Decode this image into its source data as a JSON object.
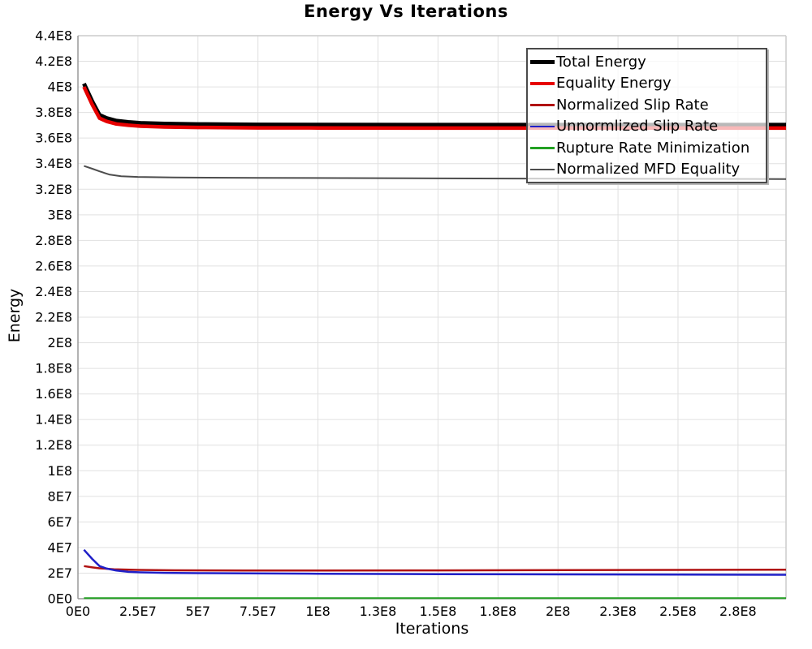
{
  "title": "Energy Vs Iterations",
  "chart_data": {
    "type": "line",
    "title": "Energy Vs Iterations",
    "xlabel": "Iterations",
    "ylabel": "Energy",
    "xlim": [
      0,
      295000000.0
    ],
    "ylim": [
      0,
      440000000.0
    ],
    "grid": true,
    "legend_position": "top-right",
    "x_ticks": [
      {
        "v": 0,
        "label": "0E0"
      },
      {
        "v": 25000000.0,
        "label": "2.5E7"
      },
      {
        "v": 50000000.0,
        "label": "5E7"
      },
      {
        "v": 75000000.0,
        "label": "7.5E7"
      },
      {
        "v": 100000000.0,
        "label": "1E8"
      },
      {
        "v": 125000000.0,
        "label": "1.3E8"
      },
      {
        "v": 150000000.0,
        "label": "1.5E8"
      },
      {
        "v": 175000000.0,
        "label": "1.8E8"
      },
      {
        "v": 200000000.0,
        "label": "2E8"
      },
      {
        "v": 225000000.0,
        "label": "2.3E8"
      },
      {
        "v": 250000000.0,
        "label": "2.5E8"
      },
      {
        "v": 275000000.0,
        "label": "2.8E8"
      }
    ],
    "y_ticks": [
      {
        "v": 0,
        "label": "0E0"
      },
      {
        "v": 20000000.0,
        "label": "2E7"
      },
      {
        "v": 40000000.0,
        "label": "4E7"
      },
      {
        "v": 60000000.0,
        "label": "6E7"
      },
      {
        "v": 80000000.0,
        "label": "8E7"
      },
      {
        "v": 100000000.0,
        "label": "1E8"
      },
      {
        "v": 120000000.0,
        "label": "1.2E8"
      },
      {
        "v": 140000000.0,
        "label": "1.4E8"
      },
      {
        "v": 160000000.0,
        "label": "1.6E8"
      },
      {
        "v": 180000000.0,
        "label": "1.8E8"
      },
      {
        "v": 200000000.0,
        "label": "2E8"
      },
      {
        "v": 220000000.0,
        "label": "2.2E8"
      },
      {
        "v": 240000000.0,
        "label": "2.4E8"
      },
      {
        "v": 260000000.0,
        "label": "2.6E8"
      },
      {
        "v": 280000000.0,
        "label": "2.8E8"
      },
      {
        "v": 300000000.0,
        "label": "3E8"
      },
      {
        "v": 320000000.0,
        "label": "3.2E8"
      },
      {
        "v": 340000000.0,
        "label": "3.4E8"
      },
      {
        "v": 360000000.0,
        "label": "3.6E8"
      },
      {
        "v": 380000000.0,
        "label": "3.8E8"
      },
      {
        "v": 400000000.0,
        "label": "4E8"
      },
      {
        "v": 420000000.0,
        "label": "4.2E8"
      },
      {
        "v": 440000000.0,
        "label": "4.4E8"
      }
    ],
    "series": [
      {
        "name": "Total Energy",
        "color": "#000000",
        "line_width": 5,
        "points": [
          [
            2500000.0,
            402500000.0
          ],
          [
            6000000.0,
            388500000.0
          ],
          [
            9000000.0,
            378000000.0
          ],
          [
            12000000.0,
            375500000.0
          ],
          [
            16000000.0,
            373500000.0
          ],
          [
            21000000.0,
            372500000.0
          ],
          [
            26000000.0,
            371800000.0
          ],
          [
            36000000.0,
            371200000.0
          ],
          [
            50000000.0,
            370800000.0
          ],
          [
            75000000.0,
            370500000.0
          ],
          [
            100000000.0,
            370400000.0
          ],
          [
            150000000.0,
            370300000.0
          ],
          [
            200000000.0,
            370300000.0
          ],
          [
            250000000.0,
            370300000.0
          ],
          [
            295000000.0,
            370300000.0
          ]
        ]
      },
      {
        "name": "Equality Energy",
        "color": "#e60000",
        "line_width": 4.5,
        "points": [
          [
            2500000.0,
            400000000.0
          ],
          [
            6000000.0,
            386000000.0
          ],
          [
            9000000.0,
            375500000.0
          ],
          [
            12000000.0,
            373000000.0
          ],
          [
            16000000.0,
            371000000.0
          ],
          [
            21000000.0,
            370000000.0
          ],
          [
            26000000.0,
            369300000.0
          ],
          [
            36000000.0,
            368700000.0
          ],
          [
            50000000.0,
            368300000.0
          ],
          [
            75000000.0,
            368000000.0
          ],
          [
            100000000.0,
            367900000.0
          ],
          [
            150000000.0,
            367800000.0
          ],
          [
            200000000.0,
            367800000.0
          ],
          [
            250000000.0,
            367800000.0
          ],
          [
            295000000.0,
            367800000.0
          ]
        ]
      },
      {
        "name": "Normalized Slip Rate",
        "color": "#b01212",
        "line_width": 2.5,
        "points": [
          [
            2500000.0,
            25500000.0
          ],
          [
            6000000.0,
            24500000.0
          ],
          [
            9000000.0,
            23800000.0
          ],
          [
            15000000.0,
            23000000.0
          ],
          [
            25000000.0,
            22500000.0
          ],
          [
            40000000.0,
            22200000.0
          ],
          [
            70000000.0,
            22000000.0
          ],
          [
            100000000.0,
            22000000.0
          ],
          [
            150000000.0,
            22100000.0
          ],
          [
            200000000.0,
            22300000.0
          ],
          [
            250000000.0,
            22500000.0
          ],
          [
            295000000.0,
            22700000.0
          ]
        ]
      },
      {
        "name": "Unnormlized Slip Rate",
        "color": "#2020c8",
        "line_width": 2.5,
        "points": [
          [
            2500000.0,
            38200000.0
          ],
          [
            6000000.0,
            31000000.0
          ],
          [
            9000000.0,
            25500000.0
          ],
          [
            12000000.0,
            23500000.0
          ],
          [
            16000000.0,
            22000000.0
          ],
          [
            21000000.0,
            21000000.0
          ],
          [
            26000000.0,
            20600000.0
          ],
          [
            36000000.0,
            20200000.0
          ],
          [
            50000000.0,
            20000000.0
          ],
          [
            100000000.0,
            19500000.0
          ],
          [
            150000000.0,
            19200000.0
          ],
          [
            200000000.0,
            19000000.0
          ],
          [
            250000000.0,
            18800000.0
          ],
          [
            295000000.0,
            18700000.0
          ]
        ]
      },
      {
        "name": "Rupture Rate Minimization",
        "color": "#22a022",
        "line_width": 2,
        "points": [
          [
            2500000.0,
            500000.0
          ],
          [
            100000000.0,
            500000.0
          ],
          [
            200000000.0,
            500000.0
          ],
          [
            295000000.0,
            500000.0
          ]
        ]
      },
      {
        "name": "Normalized MFD Equality",
        "color": "#4d4d4d",
        "line_width": 2,
        "points": [
          [
            2500000.0,
            338200000.0
          ],
          [
            6000000.0,
            336000000.0
          ],
          [
            9000000.0,
            334000000.0
          ],
          [
            13000000.0,
            331500000.0
          ],
          [
            18000000.0,
            330200000.0
          ],
          [
            25000000.0,
            329600000.0
          ],
          [
            40000000.0,
            329200000.0
          ],
          [
            75000000.0,
            328900000.0
          ],
          [
            150000000.0,
            328500000.0
          ],
          [
            220000000.0,
            328200000.0
          ],
          [
            295000000.0,
            328000000.0
          ]
        ]
      }
    ]
  },
  "legend": {
    "entries": [
      "Total Energy",
      "Equality Energy",
      "Normalized Slip Rate",
      "Unnormlized Slip Rate",
      "Rupture Rate Minimization",
      "Normalized MFD Equality"
    ]
  },
  "style_colors": {
    "grid": "#e0e0e0",
    "axis_dark": "#999999",
    "axis_light": "#cccccc",
    "tick_text": "#000000"
  }
}
